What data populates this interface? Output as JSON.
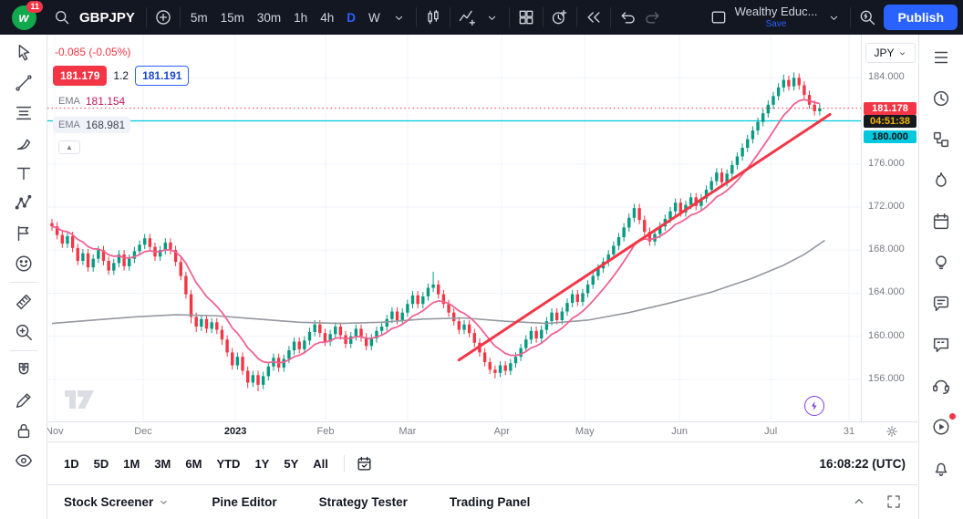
{
  "header": {
    "logo_badge": "11",
    "symbol": "GBPJPY",
    "intervals": [
      "5m",
      "15m",
      "30m",
      "1h",
      "4h",
      "D",
      "W"
    ],
    "active_interval": "D",
    "layout_name": "Wealthy Educ...",
    "save_label": "Save",
    "publish_label": "Publish",
    "icons": [
      "search",
      "compare-plus",
      "candles",
      "indicators",
      "layout-grid",
      "alert-clock",
      "replay",
      "undo",
      "redo",
      "layout-thumb",
      "quick-search"
    ]
  },
  "left_toolbar": {
    "tools": [
      "cursor",
      "trend-line",
      "fib-retracement",
      "brush",
      "text",
      "xabcd-pattern",
      "forecast",
      "emoji",
      "|",
      "ruler",
      "zoom",
      "|",
      "magnet",
      "draw",
      "lock",
      "eye"
    ]
  },
  "right_sidebar": {
    "items": [
      "watchlist",
      "alerts",
      "object-tree",
      "hotlists",
      "calendar",
      "ideas",
      "chat",
      "comments",
      "help",
      "streams",
      "notifications"
    ],
    "badge_item": "streams"
  },
  "legend": {
    "change": "-0.085 (-0.05%)",
    "bid": "181.179",
    "spread": "1.2",
    "ask": "181.191",
    "indicators": [
      {
        "label": "EMA",
        "value": "181.154",
        "color": "#c2185b"
      },
      {
        "label": "EMA",
        "value": "168.981",
        "color": "#434651"
      }
    ]
  },
  "price_scale": {
    "currency": "JPY",
    "ticks": [
      "184.000",
      "180.000",
      "176.000",
      "172.000",
      "168.000",
      "164.000",
      "160.000",
      "156.000"
    ],
    "last_price_label": "181.178",
    "countdown": "04:51:38",
    "alert_label": "180.000"
  },
  "bottom_toolbar": {
    "ranges": [
      "1D",
      "5D",
      "1M",
      "3M",
      "6M",
      "YTD",
      "1Y",
      "5Y",
      "All"
    ],
    "clock": "16:08:22 (UTC)"
  },
  "bottom_tabs": {
    "tabs": [
      {
        "label": "Stock Screener",
        "has_caret": true
      },
      {
        "label": "Pine Editor",
        "has_caret": false
      },
      {
        "label": "Strategy Tester",
        "has_caret": false
      },
      {
        "label": "Trading Panel",
        "has_caret": false
      }
    ]
  },
  "chart_data": {
    "type": "candlestick",
    "symbol": "GBPJPY",
    "interval": "D",
    "currency": "JPY",
    "last_price": 181.178,
    "change": -0.085,
    "change_pct": -0.05,
    "y_ticks": [
      184,
      180,
      176,
      172,
      168,
      164,
      160,
      156
    ],
    "ylim": [
      152.1,
      188.0
    ],
    "x_labels": [
      {
        "label": "Nov",
        "i": 0.5
      },
      {
        "label": "Dec",
        "i": 17.7
      },
      {
        "label": "2023",
        "i": 35.6
      },
      {
        "label": "Feb",
        "i": 53.1
      },
      {
        "label": "Mar",
        "i": 69.0
      },
      {
        "label": "Apr",
        "i": 87.3
      },
      {
        "label": "May",
        "i": 103.4
      },
      {
        "label": "Jun",
        "i": 121.8
      },
      {
        "label": "Jul",
        "i": 139.5
      },
      {
        "label": "31",
        "i": 154.7
      }
    ],
    "candles": [
      [
        170.5,
        170.9,
        169.8,
        170.2
      ],
      [
        170.2,
        170.6,
        169.0,
        169.4
      ],
      [
        169.4,
        169.8,
        168.2,
        168.6
      ],
      [
        168.6,
        169.7,
        168.2,
        169.3
      ],
      [
        169.3,
        169.7,
        167.8,
        168.2
      ],
      [
        168.2,
        168.6,
        166.6,
        167.0
      ],
      [
        167.0,
        168.1,
        166.6,
        167.7
      ],
      [
        167.7,
        168.1,
        166.0,
        166.4
      ],
      [
        166.4,
        167.6,
        166.0,
        167.2
      ],
      [
        167.2,
        168.4,
        166.8,
        168.0
      ],
      [
        168.0,
        168.4,
        166.6,
        167.0
      ],
      [
        167.0,
        167.4,
        165.7,
        166.1
      ],
      [
        166.1,
        167.2,
        165.7,
        166.8
      ],
      [
        166.8,
        168.0,
        166.4,
        167.6
      ],
      [
        167.6,
        168.0,
        166.1,
        166.5
      ],
      [
        166.5,
        167.6,
        166.1,
        167.2
      ],
      [
        167.2,
        168.3,
        166.8,
        167.9
      ],
      [
        167.9,
        168.9,
        167.5,
        168.5
      ],
      [
        168.5,
        169.5,
        168.1,
        169.1
      ],
      [
        169.1,
        169.5,
        167.9,
        168.3
      ],
      [
        168.3,
        168.7,
        167.0,
        167.4
      ],
      [
        167.4,
        168.4,
        167.0,
        168.0
      ],
      [
        168.0,
        169.1,
        167.6,
        168.7
      ],
      [
        168.7,
        169.1,
        167.6,
        168.0
      ],
      [
        168.0,
        168.4,
        166.5,
        166.9
      ],
      [
        166.9,
        167.3,
        165.2,
        165.6
      ],
      [
        165.6,
        166.0,
        163.5,
        163.9
      ],
      [
        163.9,
        164.3,
        161.2,
        161.8
      ],
      [
        161.8,
        162.2,
        160.4,
        160.9
      ],
      [
        160.9,
        162.0,
        160.5,
        161.6
      ],
      [
        161.6,
        162.0,
        160.3,
        160.7
      ],
      [
        160.7,
        161.7,
        160.3,
        161.3
      ],
      [
        161.3,
        161.7,
        160.2,
        160.6
      ],
      [
        160.6,
        161.0,
        159.2,
        159.7
      ],
      [
        159.7,
        160.1,
        158.1,
        158.5
      ],
      [
        158.5,
        158.9,
        156.9,
        157.3
      ],
      [
        157.3,
        158.5,
        156.9,
        158.1
      ],
      [
        158.1,
        158.5,
        156.4,
        156.8
      ],
      [
        156.8,
        157.2,
        155.2,
        155.7
      ],
      [
        155.7,
        156.8,
        155.3,
        156.4
      ],
      [
        156.4,
        156.8,
        154.9,
        155.5
      ],
      [
        155.5,
        156.7,
        155.1,
        156.3
      ],
      [
        156.3,
        157.6,
        155.9,
        157.2
      ],
      [
        157.2,
        158.4,
        156.8,
        158.0
      ],
      [
        158.0,
        158.4,
        156.7,
        157.1
      ],
      [
        157.1,
        158.3,
        156.7,
        157.9
      ],
      [
        157.9,
        159.1,
        157.5,
        158.7
      ],
      [
        158.7,
        159.9,
        158.3,
        159.5
      ],
      [
        159.5,
        159.9,
        158.4,
        158.8
      ],
      [
        158.8,
        160.0,
        158.4,
        159.6
      ],
      [
        159.6,
        160.8,
        159.2,
        160.4
      ],
      [
        160.4,
        161.5,
        160.0,
        161.1
      ],
      [
        161.1,
        161.5,
        159.9,
        160.3
      ],
      [
        160.3,
        160.7,
        159.1,
        159.5
      ],
      [
        159.5,
        160.6,
        159.1,
        160.2
      ],
      [
        160.2,
        161.3,
        159.8,
        160.9
      ],
      [
        160.9,
        161.3,
        159.7,
        160.1
      ],
      [
        160.1,
        160.5,
        158.9,
        159.3
      ],
      [
        159.3,
        160.4,
        158.9,
        160.0
      ],
      [
        160.0,
        161.1,
        159.6,
        160.7
      ],
      [
        160.7,
        161.1,
        159.5,
        159.9
      ],
      [
        159.9,
        160.3,
        158.7,
        159.1
      ],
      [
        159.1,
        160.2,
        158.7,
        159.8
      ],
      [
        159.8,
        160.9,
        159.4,
        160.5
      ],
      [
        160.5,
        161.3,
        160.1,
        160.9
      ],
      [
        160.9,
        162.0,
        160.5,
        161.6
      ],
      [
        161.6,
        162.7,
        161.2,
        162.3
      ],
      [
        162.3,
        162.7,
        161.1,
        161.5
      ],
      [
        161.5,
        162.6,
        161.1,
        162.2
      ],
      [
        162.2,
        163.4,
        161.8,
        163.0
      ],
      [
        163.0,
        164.2,
        162.6,
        163.8
      ],
      [
        163.8,
        164.2,
        162.6,
        163.0
      ],
      [
        163.0,
        164.1,
        162.6,
        163.7
      ],
      [
        163.7,
        164.9,
        163.3,
        164.5
      ],
      [
        164.5,
        166.0,
        164.1,
        164.8
      ],
      [
        164.8,
        165.2,
        163.5,
        163.9
      ],
      [
        163.9,
        164.3,
        162.6,
        163.0
      ],
      [
        163.0,
        163.4,
        161.8,
        162.2
      ],
      [
        162.2,
        162.6,
        161.0,
        161.4
      ],
      [
        161.4,
        161.8,
        160.2,
        160.6
      ],
      [
        160.6,
        161.5,
        160.2,
        161.1
      ],
      [
        161.1,
        161.5,
        159.9,
        160.3
      ],
      [
        160.3,
        160.7,
        159.0,
        159.4
      ],
      [
        159.4,
        159.8,
        158.1,
        158.5
      ],
      [
        158.5,
        158.9,
        157.2,
        157.6
      ],
      [
        157.6,
        158.0,
        156.5,
        156.9
      ],
      [
        156.9,
        157.3,
        156.1,
        156.6
      ],
      [
        156.6,
        157.7,
        156.2,
        157.3
      ],
      [
        157.3,
        157.7,
        156.4,
        156.8
      ],
      [
        156.8,
        157.9,
        156.4,
        157.5
      ],
      [
        157.5,
        158.5,
        157.1,
        158.1
      ],
      [
        158.1,
        159.3,
        157.7,
        158.9
      ],
      [
        158.9,
        160.1,
        158.5,
        159.7
      ],
      [
        159.7,
        160.9,
        159.3,
        160.5
      ],
      [
        160.5,
        160.9,
        159.4,
        159.8
      ],
      [
        159.8,
        161.0,
        159.4,
        160.6
      ],
      [
        160.6,
        161.8,
        160.2,
        161.4
      ],
      [
        161.4,
        162.6,
        161.0,
        162.2
      ],
      [
        162.2,
        162.6,
        161.1,
        161.5
      ],
      [
        161.5,
        162.7,
        161.1,
        162.3
      ],
      [
        162.3,
        163.5,
        161.9,
        163.1
      ],
      [
        163.1,
        164.3,
        162.7,
        163.9
      ],
      [
        163.9,
        164.3,
        162.8,
        163.2
      ],
      [
        163.2,
        164.4,
        162.8,
        164.0
      ],
      [
        164.0,
        165.2,
        163.6,
        164.8
      ],
      [
        164.8,
        166.0,
        164.4,
        165.6
      ],
      [
        165.6,
        166.7,
        165.2,
        166.3
      ],
      [
        166.3,
        167.3,
        165.9,
        166.9
      ],
      [
        166.9,
        168.0,
        166.5,
        167.6
      ],
      [
        167.6,
        168.8,
        167.2,
        168.4
      ],
      [
        168.4,
        169.6,
        168.0,
        169.2
      ],
      [
        169.2,
        170.5,
        168.8,
        170.1
      ],
      [
        170.1,
        171.4,
        169.7,
        171.0
      ],
      [
        171.0,
        172.3,
        170.6,
        171.9
      ],
      [
        171.9,
        172.3,
        170.4,
        170.8
      ],
      [
        170.8,
        171.2,
        169.3,
        169.7
      ],
      [
        169.7,
        170.1,
        168.4,
        168.8
      ],
      [
        168.8,
        169.9,
        168.4,
        169.5
      ],
      [
        169.5,
        170.6,
        169.1,
        170.2
      ],
      [
        170.2,
        171.3,
        169.8,
        170.9
      ],
      [
        170.9,
        172.0,
        170.5,
        171.6
      ],
      [
        171.6,
        172.8,
        171.2,
        172.4
      ],
      [
        172.4,
        172.8,
        171.1,
        171.5
      ],
      [
        171.5,
        172.6,
        171.1,
        172.2
      ],
      [
        172.2,
        173.3,
        171.8,
        172.9
      ],
      [
        172.9,
        173.3,
        171.7,
        172.1
      ],
      [
        172.1,
        173.2,
        171.7,
        172.8
      ],
      [
        172.8,
        174.0,
        172.4,
        173.6
      ],
      [
        173.6,
        174.8,
        173.2,
        174.4
      ],
      [
        174.4,
        175.6,
        174.0,
        175.2
      ],
      [
        175.2,
        175.6,
        173.9,
        174.3
      ],
      [
        174.3,
        175.5,
        173.9,
        175.1
      ],
      [
        175.1,
        176.3,
        174.7,
        175.9
      ],
      [
        175.9,
        177.1,
        175.5,
        176.7
      ],
      [
        176.7,
        177.9,
        176.3,
        177.5
      ],
      [
        177.5,
        178.7,
        177.1,
        178.3
      ],
      [
        178.3,
        179.5,
        177.9,
        179.1
      ],
      [
        179.1,
        180.3,
        178.7,
        179.9
      ],
      [
        179.9,
        181.1,
        179.5,
        180.7
      ],
      [
        180.7,
        181.9,
        180.3,
        181.5
      ],
      [
        181.5,
        182.7,
        181.1,
        182.3
      ],
      [
        182.3,
        183.5,
        181.9,
        183.1
      ],
      [
        183.1,
        184.3,
        182.7,
        183.8
      ],
      [
        183.8,
        184.2,
        182.8,
        183.2
      ],
      [
        183.2,
        184.5,
        182.8,
        184.0
      ],
      [
        184.0,
        184.4,
        182.9,
        183.3
      ],
      [
        183.3,
        183.7,
        182.0,
        182.4
      ],
      [
        182.4,
        182.8,
        181.1,
        181.5
      ],
      [
        181.5,
        181.9,
        180.5,
        180.9
      ],
      [
        180.9,
        181.6,
        180.5,
        181.178
      ]
    ],
    "ema_fast": {
      "period": 10,
      "value": 181.154,
      "color": "#f06292"
    },
    "ema_slow": {
      "value": 168.981,
      "color": "#9598a1",
      "points": [
        [
          0,
          161.2
        ],
        [
          8,
          161.5
        ],
        [
          16,
          161.8
        ],
        [
          24,
          162.0
        ],
        [
          32,
          161.9
        ],
        [
          40,
          161.6
        ],
        [
          48,
          161.3
        ],
        [
          56,
          161.2
        ],
        [
          64,
          161.3
        ],
        [
          72,
          161.6
        ],
        [
          80,
          161.7
        ],
        [
          88,
          161.4
        ],
        [
          96,
          161.2
        ],
        [
          104,
          161.5
        ],
        [
          112,
          162.2
        ],
        [
          120,
          163.1
        ],
        [
          128,
          164.1
        ],
        [
          136,
          165.4
        ],
        [
          142,
          166.6
        ],
        [
          146,
          167.6
        ],
        [
          150,
          168.9
        ]
      ]
    },
    "trendline": {
      "from": [
        79,
        157.8
      ],
      "to": [
        151,
        180.6
      ],
      "color": "#f23645",
      "width": 3
    },
    "alert_line": {
      "price": 180.0,
      "color": "#00c9dd"
    },
    "colors": {
      "up": "#089981",
      "down": "#f23645",
      "grid": "#f0f3fa"
    }
  }
}
